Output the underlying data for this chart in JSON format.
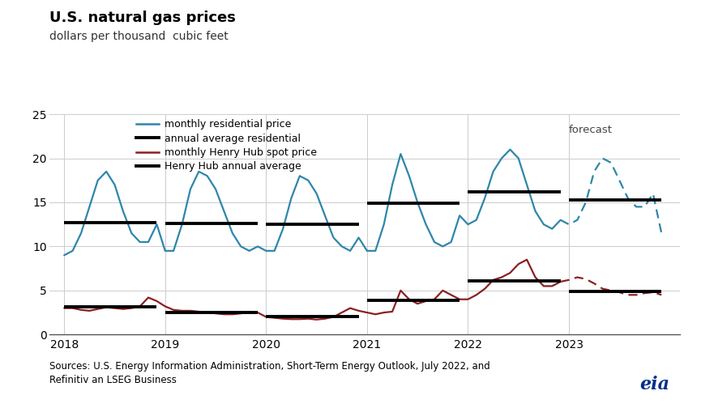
{
  "title": "U.S. natural gas prices",
  "subtitle": "dollars per thousand  cubic feet",
  "source_text": "Sources: U.S. Energy Information Administration, Short-Term Energy Outlook, July 2022, and\nRefinitiv an LSEG Business",
  "ylim": [
    0,
    25
  ],
  "yticks": [
    0,
    5,
    10,
    15,
    20,
    25
  ],
  "forecast_label": "forecast",
  "legend_entries": [
    "monthly residential price",
    "annual average residential",
    "monthly Henry Hub spot price",
    "Henry Hub annual average"
  ],
  "residential_color": "#2E86AB",
  "henry_hub_color": "#8B2020",
  "annual_avg_color": "#000000",
  "background_color": "#FFFFFF",
  "grid_color": "#CCCCCC",
  "monthly_residential_solid": {
    "x": [
      2018.0,
      2018.083,
      2018.167,
      2018.25,
      2018.333,
      2018.417,
      2018.5,
      2018.583,
      2018.667,
      2018.75,
      2018.833,
      2018.917,
      2019.0,
      2019.083,
      2019.167,
      2019.25,
      2019.333,
      2019.417,
      2019.5,
      2019.583,
      2019.667,
      2019.75,
      2019.833,
      2019.917,
      2020.0,
      2020.083,
      2020.167,
      2020.25,
      2020.333,
      2020.417,
      2020.5,
      2020.583,
      2020.667,
      2020.75,
      2020.833,
      2020.917,
      2021.0,
      2021.083,
      2021.167,
      2021.25,
      2021.333,
      2021.417,
      2021.5,
      2021.583,
      2021.667,
      2021.75,
      2021.833,
      2021.917,
      2022.0,
      2022.083,
      2022.167,
      2022.25,
      2022.333,
      2022.417,
      2022.5,
      2022.583,
      2022.667,
      2022.75,
      2022.833,
      2022.917
    ],
    "y": [
      9.0,
      9.5,
      11.5,
      14.5,
      17.5,
      18.5,
      17.0,
      14.0,
      11.5,
      10.5,
      10.5,
      12.5,
      9.5,
      9.5,
      12.5,
      16.5,
      18.5,
      18.0,
      16.5,
      14.0,
      11.5,
      10.0,
      9.5,
      10.0,
      9.5,
      9.5,
      12.0,
      15.5,
      18.0,
      17.5,
      16.0,
      13.5,
      11.0,
      10.0,
      9.5,
      11.0,
      9.5,
      9.5,
      12.5,
      17.0,
      20.5,
      18.0,
      15.0,
      12.5,
      10.5,
      10.0,
      10.5,
      13.5,
      12.5,
      13.0,
      15.5,
      18.5,
      20.0,
      21.0,
      20.0,
      17.0,
      14.0,
      12.5,
      12.0,
      13.0
    ]
  },
  "monthly_residential_dashed": {
    "x": [
      2022.917,
      2023.0,
      2023.083,
      2023.167,
      2023.25,
      2023.333,
      2023.417,
      2023.5,
      2023.583,
      2023.667,
      2023.75,
      2023.833,
      2023.917
    ],
    "y": [
      13.0,
      12.5,
      13.0,
      15.0,
      18.5,
      20.0,
      19.5,
      17.5,
      15.5,
      14.5,
      14.5,
      16.0,
      11.5
    ]
  },
  "monthly_henry_solid": {
    "x": [
      2018.0,
      2018.083,
      2018.167,
      2018.25,
      2018.333,
      2018.417,
      2018.5,
      2018.583,
      2018.667,
      2018.75,
      2018.833,
      2018.917,
      2019.0,
      2019.083,
      2019.167,
      2019.25,
      2019.333,
      2019.417,
      2019.5,
      2019.583,
      2019.667,
      2019.75,
      2019.833,
      2019.917,
      2020.0,
      2020.083,
      2020.167,
      2020.25,
      2020.333,
      2020.417,
      2020.5,
      2020.583,
      2020.667,
      2020.75,
      2020.833,
      2020.917,
      2021.0,
      2021.083,
      2021.167,
      2021.25,
      2021.333,
      2021.417,
      2021.5,
      2021.583,
      2021.667,
      2021.75,
      2021.833,
      2021.917,
      2022.0,
      2022.083,
      2022.167,
      2022.25,
      2022.333,
      2022.417,
      2022.5,
      2022.583,
      2022.667,
      2022.75,
      2022.833,
      2022.917
    ],
    "y": [
      3.0,
      3.0,
      2.8,
      2.7,
      2.9,
      3.1,
      3.0,
      2.9,
      3.0,
      3.2,
      4.2,
      3.8,
      3.2,
      2.8,
      2.7,
      2.7,
      2.6,
      2.5,
      2.4,
      2.3,
      2.3,
      2.4,
      2.6,
      2.5,
      2.0,
      1.9,
      1.8,
      1.75,
      1.75,
      1.8,
      1.7,
      1.8,
      2.0,
      2.5,
      3.0,
      2.7,
      2.5,
      2.3,
      2.5,
      2.6,
      5.0,
      4.0,
      3.5,
      3.8,
      4.0,
      5.0,
      4.5,
      4.0,
      4.0,
      4.5,
      5.2,
      6.2,
      6.5,
      7.0,
      8.0,
      8.5,
      6.5,
      5.5,
      5.5,
      6.0
    ]
  },
  "monthly_henry_dashed": {
    "x": [
      2022.917,
      2023.0,
      2023.083,
      2023.167,
      2023.25,
      2023.333,
      2023.417,
      2023.5,
      2023.583,
      2023.667,
      2023.75,
      2023.833,
      2023.917
    ],
    "y": [
      6.0,
      6.2,
      6.5,
      6.3,
      5.8,
      5.2,
      5.0,
      4.8,
      4.5,
      4.5,
      4.7,
      4.8,
      4.5
    ]
  },
  "annual_avg_residential": [
    {
      "x_start": 2018.0,
      "x_end": 2018.917,
      "y": 12.7
    },
    {
      "x_start": 2019.0,
      "x_end": 2019.917,
      "y": 12.6
    },
    {
      "x_start": 2020.0,
      "x_end": 2020.917,
      "y": 12.5
    },
    {
      "x_start": 2021.0,
      "x_end": 2021.917,
      "y": 14.9
    },
    {
      "x_start": 2022.0,
      "x_end": 2022.917,
      "y": 16.2
    },
    {
      "x_start": 2023.0,
      "x_end": 2023.917,
      "y": 15.3
    }
  ],
  "annual_avg_henry": [
    {
      "x_start": 2018.0,
      "x_end": 2018.917,
      "y": 3.15
    },
    {
      "x_start": 2019.0,
      "x_end": 2019.917,
      "y": 2.55
    },
    {
      "x_start": 2020.0,
      "x_end": 2020.917,
      "y": 2.03
    },
    {
      "x_start": 2021.0,
      "x_end": 2021.917,
      "y": 3.89
    },
    {
      "x_start": 2022.0,
      "x_end": 2022.917,
      "y": 6.1
    },
    {
      "x_start": 2023.0,
      "x_end": 2023.917,
      "y": 4.85
    }
  ],
  "forecast_x": 2022.917,
  "xlim": [
    2017.85,
    2024.1
  ],
  "xtick_positions": [
    2018,
    2019,
    2020,
    2021,
    2022,
    2023
  ],
  "xtick_labels": [
    "2018",
    "2019",
    "2020",
    "2021",
    "2022",
    "2023"
  ]
}
